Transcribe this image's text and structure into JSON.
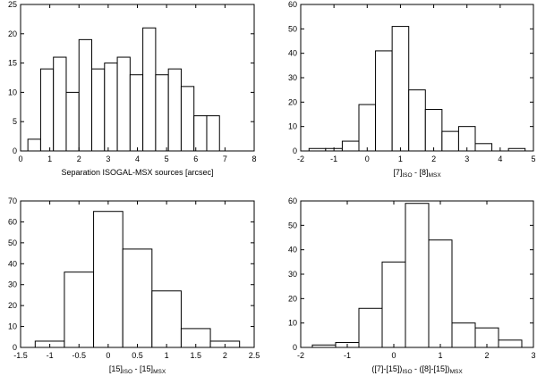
{
  "figure": {
    "background": "#ffffff",
    "bar_fill": "#ffffff",
    "line_color": "#000000"
  },
  "chart_data": [
    {
      "type": "bar",
      "subtype": "histogram",
      "id": "separation",
      "xlabel": "Separation ISOGAL-MSX sources [arcsec]",
      "xlim": [
        0,
        8
      ],
      "ylim": [
        0,
        25
      ],
      "xticks": [
        0,
        1,
        2,
        3,
        4,
        5,
        6,
        7,
        8
      ],
      "yticks": [
        0,
        5,
        10,
        15,
        20,
        25
      ],
      "bins": [
        {
          "x0": 0.25,
          "x1": 0.6875,
          "value": 2
        },
        {
          "x0": 0.6875,
          "x1": 1.125,
          "value": 14
        },
        {
          "x0": 1.125,
          "x1": 1.5625,
          "value": 16
        },
        {
          "x0": 1.5625,
          "x1": 2.0,
          "value": 10
        },
        {
          "x0": 2.0,
          "x1": 2.4375,
          "value": 19
        },
        {
          "x0": 2.4375,
          "x1": 2.875,
          "value": 14
        },
        {
          "x0": 2.875,
          "x1": 3.3125,
          "value": 15
        },
        {
          "x0": 3.3125,
          "x1": 3.75,
          "value": 16
        },
        {
          "x0": 3.75,
          "x1": 4.1875,
          "value": 13
        },
        {
          "x0": 4.1875,
          "x1": 4.625,
          "value": 21
        },
        {
          "x0": 4.625,
          "x1": 5.0625,
          "value": 13
        },
        {
          "x0": 5.0625,
          "x1": 5.5,
          "value": 14
        },
        {
          "x0": 5.5,
          "x1": 5.9375,
          "value": 11
        },
        {
          "x0": 5.9375,
          "x1": 6.375,
          "value": 6
        },
        {
          "x0": 6.375,
          "x1": 6.8125,
          "value": 6
        }
      ]
    },
    {
      "type": "bar",
      "subtype": "histogram",
      "id": "color-7-8",
      "xlabel_parts": [
        "[7]",
        "ISO",
        " - [8]",
        "MSX"
      ],
      "xlim": [
        -2,
        5
      ],
      "ylim": [
        0,
        60
      ],
      "xticks": [
        -2,
        -1,
        0,
        1,
        2,
        3,
        4,
        5
      ],
      "yticks": [
        0,
        10,
        20,
        30,
        40,
        50,
        60
      ],
      "bins": [
        {
          "x0": -1.75,
          "x1": -1.25,
          "value": 1
        },
        {
          "x0": -1.25,
          "x1": -0.75,
          "value": 1
        },
        {
          "x0": -0.75,
          "x1": -0.25,
          "value": 4
        },
        {
          "x0": -0.25,
          "x1": 0.25,
          "value": 19
        },
        {
          "x0": 0.25,
          "x1": 0.75,
          "value": 41
        },
        {
          "x0": 0.75,
          "x1": 1.25,
          "value": 51
        },
        {
          "x0": 1.25,
          "x1": 1.75,
          "value": 25
        },
        {
          "x0": 1.75,
          "x1": 2.25,
          "value": 17
        },
        {
          "x0": 2.25,
          "x1": 2.75,
          "value": 8
        },
        {
          "x0": 2.75,
          "x1": 3.25,
          "value": 10
        },
        {
          "x0": 3.25,
          "x1": 3.75,
          "value": 3
        },
        {
          "x0": 3.75,
          "x1": 4.25,
          "value": 0
        },
        {
          "x0": 4.25,
          "x1": 4.75,
          "value": 1
        }
      ]
    },
    {
      "type": "bar",
      "subtype": "histogram",
      "id": "color-15-15",
      "xlabel_parts": [
        "[15]",
        "ISO",
        " - [15]",
        "MSX"
      ],
      "xlim": [
        -1.5,
        2.5
      ],
      "ylim": [
        0,
        70
      ],
      "xticks": [
        -1.5,
        -1,
        -0.5,
        0,
        0.5,
        1,
        1.5,
        2,
        2.5
      ],
      "yticks": [
        0,
        10,
        20,
        30,
        40,
        50,
        60,
        70
      ],
      "bins": [
        {
          "x0": -1.25,
          "x1": -0.75,
          "value": 3
        },
        {
          "x0": -0.75,
          "x1": -0.25,
          "value": 36
        },
        {
          "x0": -0.25,
          "x1": 0.25,
          "value": 65
        },
        {
          "x0": 0.25,
          "x1": 0.75,
          "value": 47
        },
        {
          "x0": 0.75,
          "x1": 1.25,
          "value": 27
        },
        {
          "x0": 1.25,
          "x1": 1.75,
          "value": 9
        },
        {
          "x0": 1.75,
          "x1": 2.25,
          "value": 3
        }
      ]
    },
    {
      "type": "bar",
      "subtype": "histogram",
      "id": "color-diff",
      "xlabel_parts": [
        "([7]-[15])",
        "ISO",
        " - ([8]-[15])",
        "MSX"
      ],
      "xlim": [
        -2,
        3
      ],
      "ylim": [
        0,
        60
      ],
      "xticks": [
        -2,
        -1,
        0,
        1,
        2,
        3
      ],
      "yticks": [
        0,
        10,
        20,
        30,
        40,
        50,
        60
      ],
      "bins": [
        {
          "x0": -1.75,
          "x1": -1.25,
          "value": 1
        },
        {
          "x0": -1.25,
          "x1": -0.75,
          "value": 2
        },
        {
          "x0": -0.75,
          "x1": -0.25,
          "value": 16
        },
        {
          "x0": -0.25,
          "x1": 0.25,
          "value": 35
        },
        {
          "x0": 0.25,
          "x1": 0.75,
          "value": 59
        },
        {
          "x0": 0.75,
          "x1": 1.25,
          "value": 44
        },
        {
          "x0": 1.25,
          "x1": 1.75,
          "value": 10
        },
        {
          "x0": 1.75,
          "x1": 2.25,
          "value": 8
        },
        {
          "x0": 2.25,
          "x1": 2.75,
          "value": 3
        }
      ]
    }
  ]
}
